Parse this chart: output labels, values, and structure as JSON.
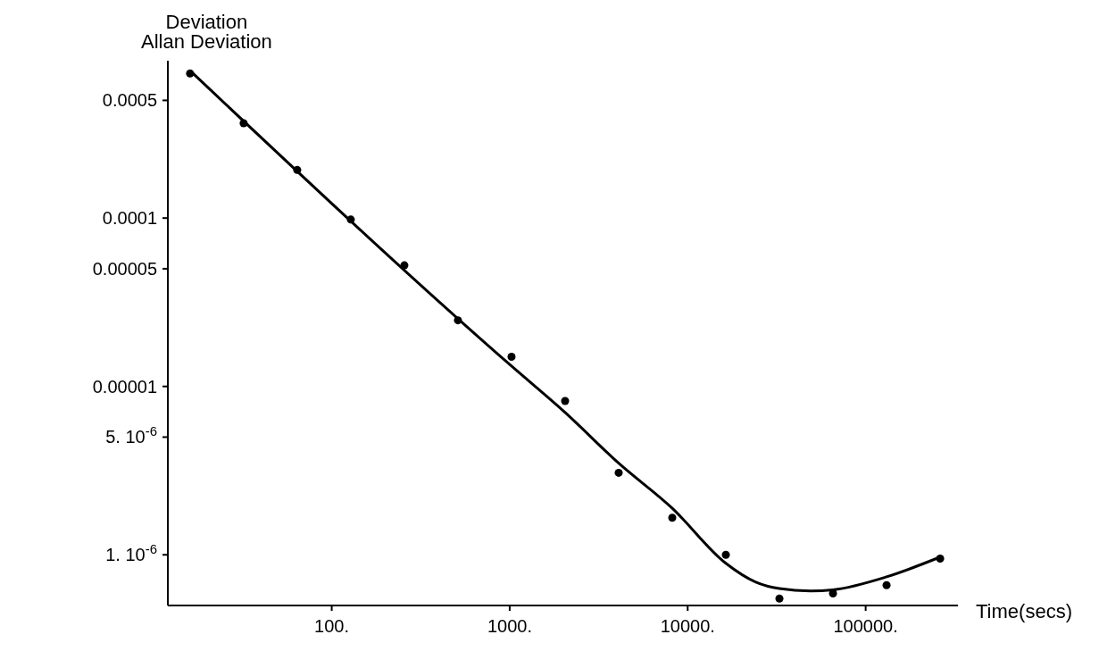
{
  "chart_data": {
    "type": "scatter",
    "ylabel": "Allan Deviation",
    "xlabel": "Time(secs)",
    "annotations": [
      "Deviation"
    ],
    "log": "xy",
    "grid": false,
    "marker": "circle",
    "xlim": [
      12,
      330000
    ],
    "ylim": [
      5e-07,
      0.00086
    ],
    "xticks": [
      {
        "value": 100,
        "label": "100."
      },
      {
        "value": 1000,
        "label": "1000."
      },
      {
        "value": 10000,
        "label": "10000."
      },
      {
        "value": 100000,
        "label": "100000."
      }
    ],
    "yticks": [
      {
        "value": 0.0005,
        "label": "0.0005"
      },
      {
        "value": 0.0001,
        "label": "0.0001"
      },
      {
        "value": 5e-05,
        "label": "0.00005"
      },
      {
        "value": 1e-05,
        "label": "0.00001"
      },
      {
        "value": 5e-06,
        "label": "5. 10$^{-6}$"
      },
      {
        "value": 1e-06,
        "label": "1. 10$^{-6}$"
      }
    ],
    "series": [
      {
        "color": "#000000",
        "x": [
          16,
          32,
          64,
          128,
          256,
          512,
          1024,
          2048,
          4096,
          8192,
          16384,
          32768,
          65536,
          131072,
          262144
        ],
        "values": [
          0.000723,
          0.000366,
          0.000193,
          9.8e-05,
          5.24e-05,
          2.47e-05,
          1.5e-05,
          8.2e-06,
          3.07e-06,
          1.66e-06,
          1e-06,
          5.5e-07,
          5.9e-07,
          6.6e-07,
          9.5e-07
        ]
      },
      {
        "type": "line",
        "color": "#000000",
        "line_style": "solid",
        "marker": "none",
        "x": [
          16,
          1024,
          2048,
          4096,
          8192,
          16384,
          24000,
          32768,
          49000,
          65536,
          131072,
          262144
        ],
        "values": [
          0.00075,
          1.32e-05,
          7e-06,
          3.5e-06,
          1.89e-06,
          8.9e-07,
          6.9e-07,
          6.3e-07,
          6.1e-07,
          6.2e-07,
          7.4e-07,
          9.7e-07
        ]
      }
    ]
  }
}
